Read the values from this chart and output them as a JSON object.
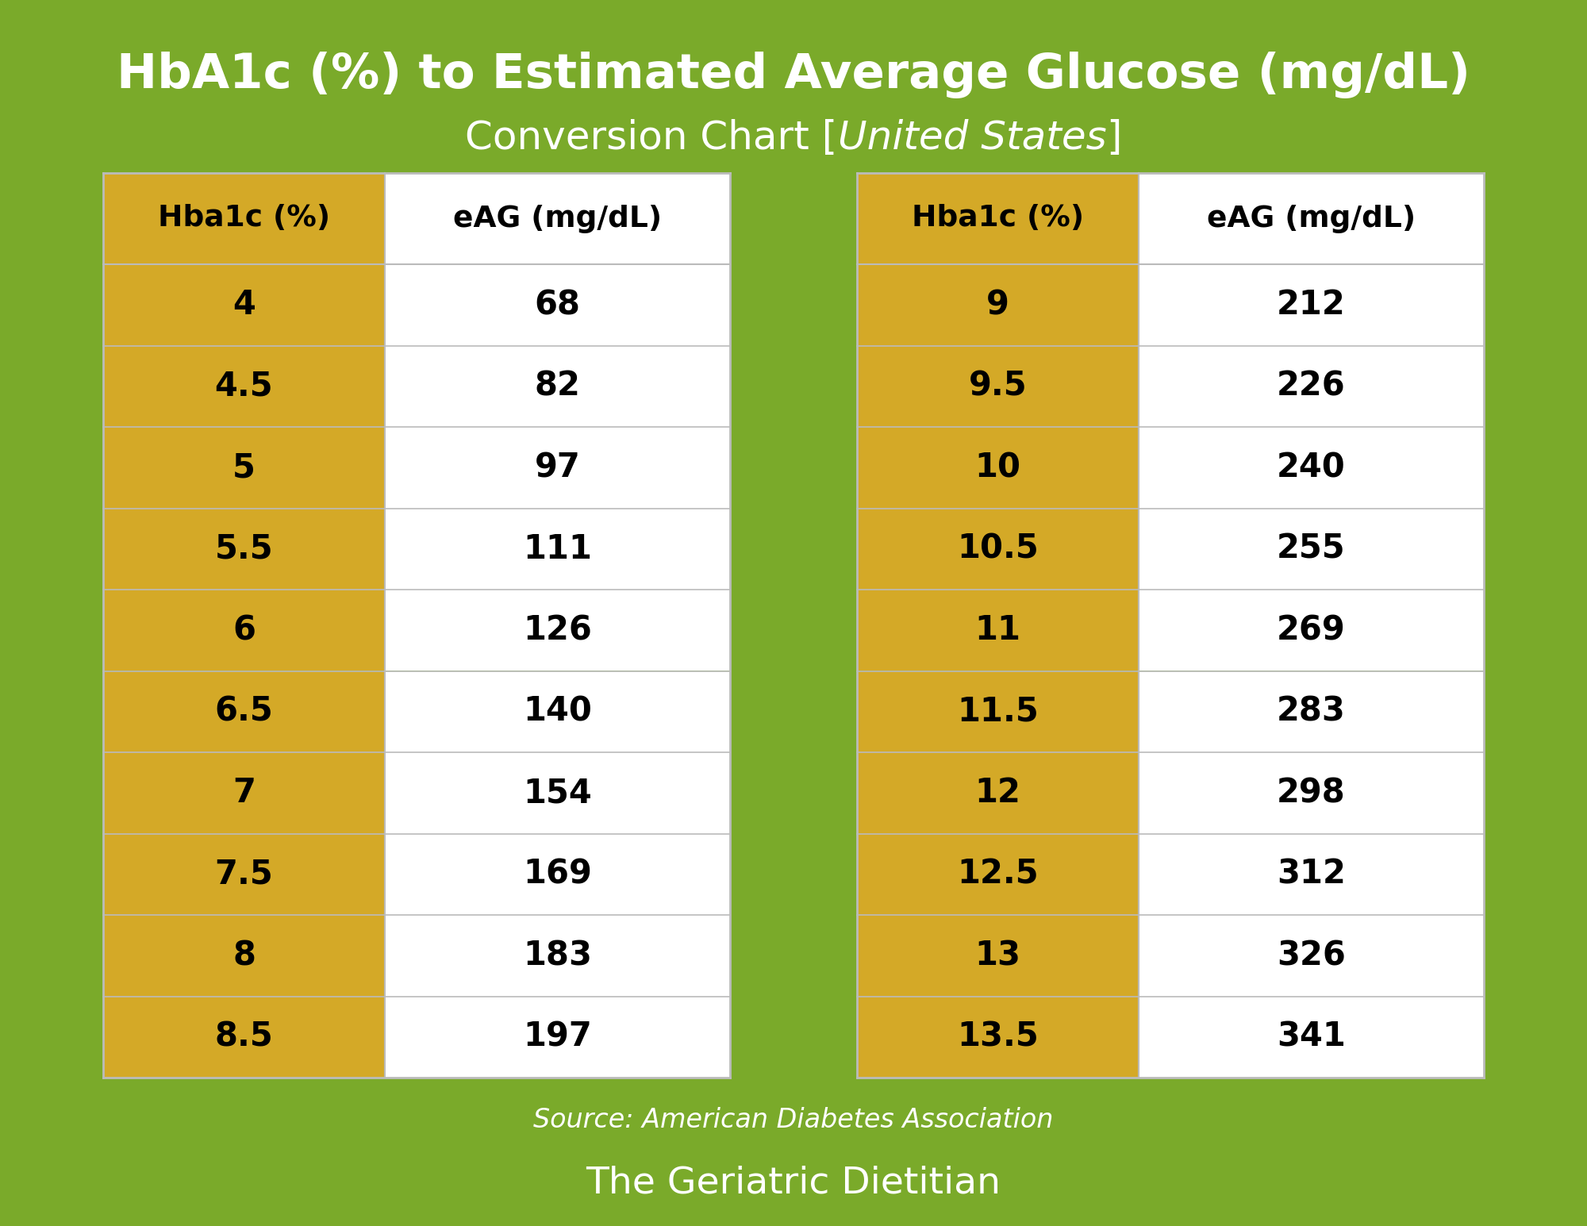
{
  "title_line1": "HbA1c (%) to Estimated Average Glucose (mg/dL)",
  "title_line2_prefix": "Conversion Chart [",
  "title_line2_italic": "United States",
  "title_line2_suffix": "]",
  "source_text": "Source: American Diabetes Association",
  "footer_text": "The Geriatric Dietitian",
  "bg_color": "#7aaa2a",
  "header_col1_bg": "#d4a927",
  "header_col2_bg": "#ffffff",
  "data_col1_bg": "#d4a927",
  "data_col2_bg": "#ffffff",
  "text_color": "#000000",
  "title_color": "#ffffff",
  "grid_color": "#bbbbbb",
  "left_table": {
    "hba1c": [
      "4",
      "4.5",
      "5",
      "5.5",
      "6",
      "6.5",
      "7",
      "7.5",
      "8",
      "8.5"
    ],
    "eag": [
      "68",
      "82",
      "97",
      "111",
      "126",
      "140",
      "154",
      "169",
      "183",
      "197"
    ]
  },
  "right_table": {
    "hba1c": [
      "9",
      "9.5",
      "10",
      "10.5",
      "11",
      "11.5",
      "12",
      "12.5",
      "13",
      "13.5"
    ],
    "eag": [
      "212",
      "226",
      "240",
      "255",
      "269",
      "283",
      "298",
      "312",
      "326",
      "341"
    ]
  }
}
